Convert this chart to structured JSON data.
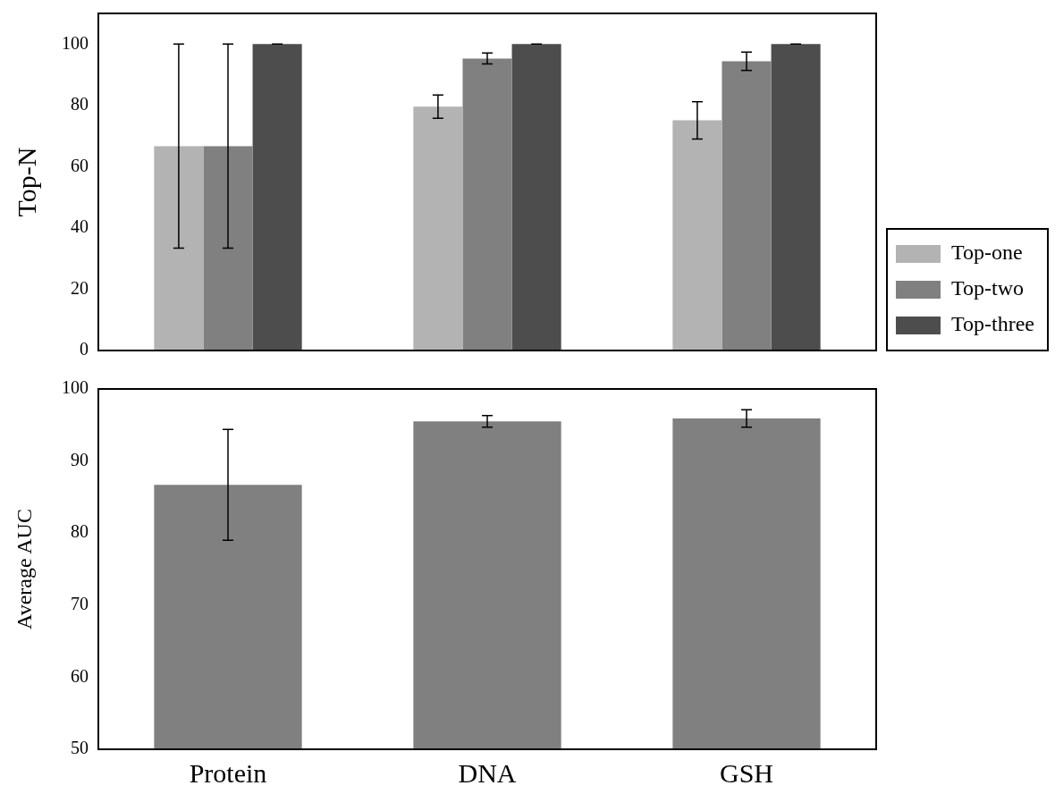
{
  "chart_data": [
    {
      "type": "bar",
      "ylabel": "Top-N",
      "categories": [
        null,
        null,
        null
      ],
      "ylim": [
        0,
        110
      ],
      "yticks": [
        0,
        20,
        40,
        60,
        80,
        100
      ],
      "tick_labels": "y",
      "legend": "right",
      "series": [
        {
          "name": "Top-one",
          "color": "#b3b3b3",
          "values": [
            66.7,
            79.6,
            75.1
          ],
          "errors": [
            33.3,
            3.8,
            6.1
          ]
        },
        {
          "name": "Top-two",
          "color": "#808080",
          "values": [
            66.7,
            95.3,
            94.4
          ],
          "errors": [
            33.3,
            1.8,
            3.0
          ]
        },
        {
          "name": "Top-three",
          "color": "#4d4d4d",
          "values": [
            100,
            100,
            100
          ],
          "errors": [
            0,
            0,
            0
          ]
        }
      ]
    },
    {
      "type": "bar",
      "ylabel": "Average AUC",
      "categories": [
        "Protein",
        "DNA",
        "GSH"
      ],
      "ylim": [
        50,
        100
      ],
      "yticks": [
        50,
        60,
        70,
        80,
        90,
        100
      ],
      "color": "#808080",
      "values": [
        86.7,
        95.5,
        95.9
      ],
      "errors": [
        7.7,
        0.8,
        1.2
      ]
    }
  ]
}
